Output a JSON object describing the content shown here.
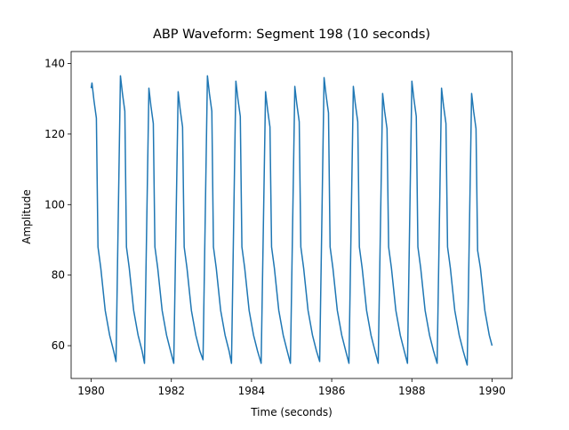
{
  "chart_data": {
    "type": "line",
    "title": "ABP Waveform: Segment 198 (10 seconds)",
    "x_label": "Time (seconds)",
    "y_label": "Amplitude",
    "xlim": [
      1979.5,
      1990.5
    ],
    "ylim": [
      50.7,
      143.4
    ],
    "xticks": [
      1980,
      1982,
      1984,
      1986,
      1988,
      1990
    ],
    "yticks": [
      60,
      80,
      100,
      120,
      140
    ],
    "grid": false,
    "series": [
      {
        "color": "#1f77b4",
        "x": [
          1980.0,
          1980.02,
          1980.07,
          1980.13,
          1980.17,
          1980.24,
          1980.35,
          1980.46,
          1980.56,
          1980.62,
          1980.73,
          1980.78,
          1980.84,
          1980.88,
          1980.95,
          1981.06,
          1981.17,
          1981.27,
          1981.33,
          1981.44,
          1981.49,
          1981.55,
          1981.59,
          1981.66,
          1981.77,
          1981.88,
          1981.98,
          1982.06,
          1982.17,
          1982.22,
          1982.28,
          1982.32,
          1982.39,
          1982.5,
          1982.61,
          1982.71,
          1982.79,
          1982.9,
          1982.95,
          1983.01,
          1983.05,
          1983.12,
          1983.23,
          1983.34,
          1983.44,
          1983.5,
          1983.61,
          1983.66,
          1983.72,
          1983.76,
          1983.83,
          1983.94,
          1984.05,
          1984.15,
          1984.24,
          1984.35,
          1984.4,
          1984.46,
          1984.5,
          1984.57,
          1984.68,
          1984.79,
          1984.89,
          1984.97,
          1985.08,
          1985.13,
          1985.19,
          1985.23,
          1985.3,
          1985.41,
          1985.52,
          1985.62,
          1985.7,
          1985.81,
          1985.86,
          1985.92,
          1985.96,
          1986.03,
          1986.14,
          1986.25,
          1986.35,
          1986.43,
          1986.54,
          1986.59,
          1986.65,
          1986.69,
          1986.76,
          1986.87,
          1986.98,
          1987.08,
          1987.16,
          1987.27,
          1987.32,
          1987.38,
          1987.42,
          1987.49,
          1987.6,
          1987.71,
          1987.81,
          1987.89,
          1988.0,
          1988.05,
          1988.11,
          1988.15,
          1988.22,
          1988.33,
          1988.44,
          1988.54,
          1988.63,
          1988.74,
          1988.79,
          1988.85,
          1988.89,
          1988.96,
          1989.07,
          1989.18,
          1989.28,
          1989.38,
          1989.49,
          1989.54,
          1989.6,
          1989.64,
          1989.71,
          1989.82,
          1989.93,
          1990.0
        ],
        "values": [
          133,
          134.5,
          129.5,
          124.5,
          88,
          82,
          70,
          63,
          58.5,
          55.5,
          136.5,
          131.5,
          126.5,
          88,
          82,
          70,
          63,
          58.5,
          55,
          133,
          128,
          123,
          88,
          82,
          70,
          63,
          58.5,
          55,
          132,
          127,
          122,
          88,
          82,
          70,
          63,
          58.5,
          56,
          136.5,
          131.5,
          126.5,
          88,
          82,
          70,
          63,
          58.5,
          55,
          135,
          130,
          125,
          88,
          82,
          70,
          63,
          58.5,
          55,
          132,
          127,
          122,
          88,
          82,
          70,
          63,
          58.5,
          55,
          133.5,
          128.5,
          123.5,
          88,
          82,
          70,
          63,
          58.5,
          55.5,
          136,
          131,
          126,
          88,
          82,
          70,
          63,
          58.5,
          55,
          133.5,
          128.5,
          123.5,
          88,
          82,
          70,
          63,
          58.5,
          55,
          131.5,
          126.5,
          121.5,
          88,
          82,
          70,
          63,
          58.5,
          55,
          135,
          130,
          125,
          88,
          82,
          70,
          63,
          58.5,
          55,
          133,
          128,
          123,
          88,
          82,
          70,
          63,
          58.5,
          54.5,
          131.5,
          126.5,
          121.5,
          87,
          82,
          70,
          63,
          60
        ]
      }
    ]
  }
}
